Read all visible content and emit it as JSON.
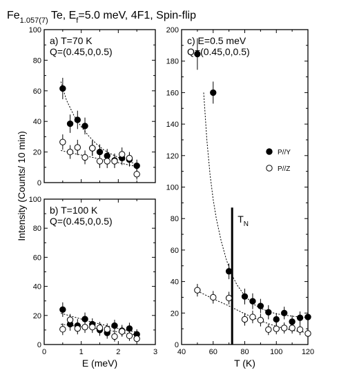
{
  "title": {
    "main": "Fe",
    "sub": "1.057(7)",
    "rest1": " Te, E",
    "sub2": "f",
    "rest2": "=5.0 meV, 4F1, Spin-flip"
  },
  "colors": {
    "ink": "#000000",
    "open_fill": "#ffffff",
    "background": "#ffffff"
  },
  "chart_data": [
    {
      "id": "a",
      "type": "scatter",
      "annotation": [
        "a) T=70 K",
        "Q=(0.45,0,0.5)"
      ],
      "xlim": [
        0,
        3
      ],
      "ylim": [
        0,
        100
      ],
      "xticks": [],
      "yticks": [
        0,
        20,
        40,
        60,
        80,
        100
      ],
      "series": [
        {
          "marker": "filled",
          "points": [
            [
              0.5,
              61.5,
              7
            ],
            [
              0.7,
              38.5,
              6
            ],
            [
              0.9,
              41,
              6
            ],
            [
              1.1,
              37,
              5.5
            ],
            [
              1.3,
              22.5,
              5
            ],
            [
              1.5,
              20,
              5
            ],
            [
              1.7,
              17.5,
              4.5
            ],
            [
              1.9,
              14.5,
              4.5
            ],
            [
              2.1,
              16,
              4.5
            ],
            [
              2.3,
              15,
              4.5
            ],
            [
              2.5,
              11,
              4
            ]
          ],
          "fit": [
            [
              0.45,
              66
            ],
            [
              0.6,
              54
            ],
            [
              0.8,
              44
            ],
            [
              1.0,
              36.5
            ],
            [
              1.2,
              30.5
            ],
            [
              1.4,
              25.5
            ],
            [
              1.6,
              21.5
            ],
            [
              1.8,
              18.8
            ],
            [
              2.0,
              16.5
            ],
            [
              2.2,
              14.5
            ],
            [
              2.5,
              12
            ]
          ]
        },
        {
          "marker": "open",
          "points": [
            [
              0.5,
              26.5,
              5
            ],
            [
              0.7,
              20,
              4.5
            ],
            [
              0.9,
              23,
              5
            ],
            [
              1.1,
              16.5,
              4.5
            ],
            [
              1.3,
              22.5,
              5
            ],
            [
              1.5,
              14,
              4.5
            ],
            [
              1.7,
              14,
              4.5
            ],
            [
              1.9,
              14,
              4.5
            ],
            [
              2.1,
              18.5,
              4.5
            ],
            [
              2.3,
              16,
              4
            ],
            [
              2.5,
              5.5,
              3.5
            ]
          ],
          "fit": [
            [
              0.45,
              21
            ],
            [
              0.7,
              19.5
            ],
            [
              1.0,
              18
            ],
            [
              1.3,
              16.5
            ],
            [
              1.6,
              15
            ],
            [
              1.9,
              13.5
            ],
            [
              2.2,
              12
            ],
            [
              2.5,
              10.5
            ]
          ]
        }
      ]
    },
    {
      "id": "b",
      "type": "scatter",
      "annotation": [
        "b) T=100 K",
        "Q=(0.45,0,0.5)"
      ],
      "xlim": [
        0,
        3
      ],
      "ylim": [
        0,
        100
      ],
      "xticks": [
        0,
        1,
        2,
        3
      ],
      "yticks": [
        0,
        20,
        40,
        60,
        80,
        100
      ],
      "xlabel": "E (meV)",
      "series": [
        {
          "marker": "filled",
          "points": [
            [
              0.5,
              24,
              5
            ],
            [
              0.7,
              14,
              4.5
            ],
            [
              0.9,
              13,
              4.5
            ],
            [
              1.1,
              17.5,
              4.5
            ],
            [
              1.3,
              14,
              4
            ],
            [
              1.5,
              10,
              4
            ],
            [
              1.7,
              8,
              4
            ],
            [
              1.9,
              13,
              4
            ],
            [
              2.1,
              9.5,
              4
            ],
            [
              2.3,
              11,
              4
            ],
            [
              2.5,
              7,
              3.5
            ]
          ],
          "fit": [
            [
              0.45,
              21.5
            ],
            [
              0.8,
              19
            ],
            [
              1.2,
              16
            ],
            [
              1.6,
              13.5
            ],
            [
              2.0,
              11
            ],
            [
              2.5,
              8.5
            ]
          ]
        },
        {
          "marker": "open",
          "points": [
            [
              0.5,
              10.5,
              4
            ],
            [
              0.7,
              17,
              4
            ],
            [
              0.9,
              11,
              4
            ],
            [
              1.1,
              12,
              4
            ],
            [
              1.3,
              12,
              4
            ],
            [
              1.5,
              11.5,
              4
            ],
            [
              1.7,
              10.5,
              4
            ],
            [
              1.9,
              5.5,
              3.5
            ],
            [
              2.1,
              9,
              3.5
            ],
            [
              2.3,
              6,
              3.5
            ],
            [
              2.5,
              4,
              3
            ]
          ],
          "fit": [
            [
              0.45,
              14
            ],
            [
              0.9,
              12.5
            ],
            [
              1.4,
              11
            ],
            [
              1.9,
              9
            ],
            [
              2.5,
              6.5
            ]
          ]
        }
      ]
    },
    {
      "id": "c",
      "type": "scatter",
      "annotation": [
        "c) E=0.5 meV",
        "Q=(0.45,0,0.5)"
      ],
      "xlim": [
        40,
        120
      ],
      "ylim": [
        0,
        200
      ],
      "xticks": [
        40,
        60,
        80,
        100,
        120
      ],
      "yticks": [
        0,
        20,
        40,
        60,
        80,
        100,
        120,
        140,
        160,
        180,
        200
      ],
      "xlabel": "T (K)",
      "transition": {
        "x": 72,
        "y_range": [
          0,
          87
        ],
        "label": "T",
        "label_sub": "N"
      },
      "legend": {
        "placement": "right",
        "entries": [
          {
            "marker": "filled",
            "label": "P//Y"
          },
          {
            "marker": "open",
            "label": "P//Z"
          }
        ]
      },
      "series": [
        {
          "name": "P//Y",
          "marker": "filled",
          "points": [
            [
              50,
              184.5,
              10
            ],
            [
              60,
              160,
              7
            ],
            [
              70,
              46.5,
              5
            ],
            [
              80,
              30.5,
              5
            ],
            [
              85,
              27.5,
              5
            ],
            [
              90,
              24.5,
              4.5
            ],
            [
              95,
              20.5,
              4.5
            ],
            [
              100,
              16,
              4
            ],
            [
              105,
              20,
              4
            ],
            [
              110,
              14.5,
              4
            ],
            [
              115,
              17,
              4
            ],
            [
              120,
              17.5,
              4
            ]
          ],
          "fit": [
            [
              54,
              160
            ],
            [
              56,
              130
            ],
            [
              58,
              108
            ],
            [
              60,
              92
            ],
            [
              62,
              80
            ],
            [
              65,
              66
            ],
            [
              68,
              55
            ],
            [
              71,
              46
            ],
            [
              75,
              38
            ],
            [
              80,
              31
            ],
            [
              85,
              26
            ],
            [
              90,
              23
            ],
            [
              95,
              21
            ],
            [
              100,
              19.5
            ],
            [
              110,
              18
            ],
            [
              120,
              17
            ]
          ]
        },
        {
          "name": "P//Z",
          "marker": "open",
          "points": [
            [
              50,
              34.5,
              4
            ],
            [
              60,
              30,
              4
            ],
            [
              70,
              29.5,
              4
            ],
            [
              80,
              16,
              4
            ],
            [
              85,
              17.5,
              4
            ],
            [
              90,
              15.5,
              4
            ],
            [
              95,
              9.5,
              3.5
            ],
            [
              100,
              10,
              3.5
            ],
            [
              105,
              10.5,
              3.5
            ],
            [
              110,
              10.5,
              3.5
            ],
            [
              115,
              9.5,
              3.5
            ],
            [
              120,
              7,
              3.5
            ]
          ],
          "fit": [
            [
              50,
              34
            ],
            [
              60,
              29
            ],
            [
              70,
              24.5
            ],
            [
              80,
              19.5
            ],
            [
              90,
              15
            ],
            [
              100,
              11.5
            ],
            [
              110,
              9
            ],
            [
              120,
              7.5
            ]
          ]
        }
      ]
    }
  ],
  "shared_ylabel": "Intensity (Counts/ 10 min)"
}
